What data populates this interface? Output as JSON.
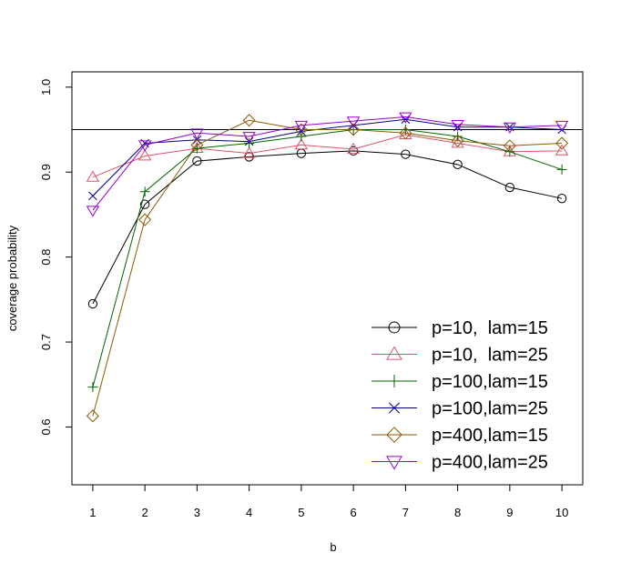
{
  "chart_data": {
    "type": "line",
    "title": "",
    "xlabel": "b",
    "ylabel": "coverage probability",
    "x": [
      1,
      2,
      3,
      4,
      5,
      6,
      7,
      8,
      9,
      10
    ],
    "x_tick_labels": [
      "1",
      "2",
      "3",
      "4",
      "5",
      "6",
      "7",
      "8",
      "9",
      "10"
    ],
    "y_ticks": [
      0.6,
      0.7,
      0.8,
      0.9,
      1.0
    ],
    "y_tick_labels": [
      "0.6",
      "0.7",
      "0.8",
      "0.9",
      "1.0"
    ],
    "xlim": [
      0.6,
      10.4
    ],
    "ylim": [
      0.532,
      1.018
    ],
    "reference_line": 0.95,
    "grid": false,
    "legend_position": "bottom-right",
    "series": [
      {
        "name": "p=10,  lam=15",
        "color": "#000000",
        "marker": "circle",
        "values": [
          0.745,
          0.862,
          0.913,
          0.918,
          0.922,
          0.925,
          0.921,
          0.909,
          0.882,
          0.869
        ]
      },
      {
        "name": "p=10,  lam=25",
        "color": "#DF536B",
        "marker": "triangle-up",
        "values": [
          0.894,
          0.919,
          0.928,
          0.922,
          0.932,
          0.927,
          0.944,
          0.934,
          0.924,
          0.925
        ]
      },
      {
        "name": "p=100,lam=15",
        "color": "#006400",
        "marker": "plus",
        "values": [
          0.647,
          0.877,
          0.928,
          0.934,
          0.942,
          0.95,
          0.95,
          0.942,
          0.924,
          0.903
        ]
      },
      {
        "name": "p=100,lam=25",
        "color": "#00008B",
        "marker": "x",
        "values": [
          0.872,
          0.934,
          0.938,
          0.936,
          0.948,
          0.955,
          0.962,
          0.953,
          0.953,
          0.95
        ]
      },
      {
        "name": "p=400,lam=15",
        "color": "#8B5A00",
        "marker": "diamond",
        "values": [
          0.613,
          0.844,
          0.932,
          0.961,
          0.95,
          0.95,
          0.946,
          0.937,
          0.931,
          0.934
        ]
      },
      {
        "name": "p=400,lam=25",
        "color": "#9400D3",
        "marker": "triangle-down",
        "values": [
          0.855,
          0.932,
          0.946,
          0.942,
          0.955,
          0.96,
          0.965,
          0.956,
          0.953,
          0.955
        ]
      }
    ]
  }
}
